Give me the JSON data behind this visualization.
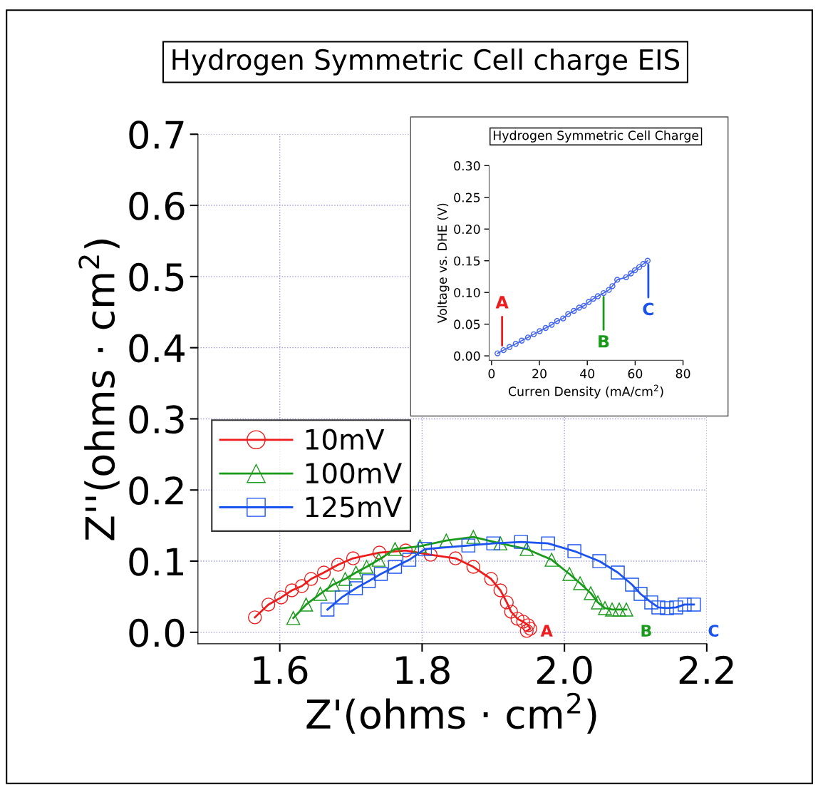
{
  "chart_data": [
    {
      "type": "line",
      "title": "Hydrogen Symmetric Cell charge EIS",
      "xlabel": "Z'(ohms · cm$^{2}$)",
      "ylabel": "Z''(ohms · cm$^{2}$)",
      "xlim": [
        1.485,
        2.2
      ],
      "ylim": [
        -0.016,
        0.7
      ],
      "xticks": [
        1.6,
        1.8,
        {
          "value": 2,
          "label": "2.0"
        },
        2.2
      ],
      "yticks": [
        {
          "value": 0,
          "label": "0.0"
        },
        0.1,
        0.2,
        0.3,
        0.4,
        0.5,
        0.6,
        0.7
      ],
      "grid": true,
      "legend": "left",
      "line_style": "solid",
      "series": [
        {
          "name": "10mV",
          "color": "#ee1c1c",
          "marker": "circle",
          "x": [
            1.565,
            1.584,
            1.602,
            1.617,
            1.631,
            1.644,
            1.662,
            1.682,
            1.703,
            1.74,
            1.777,
            1.812,
            1.847,
            1.872,
            1.897,
            1.91,
            1.919,
            1.925,
            1.934,
            1.942,
            1.949,
            1.952,
            1.947
          ],
          "values": [
            0.021,
            0.039,
            0.049,
            0.059,
            0.065,
            0.075,
            0.084,
            0.095,
            0.104,
            0.112,
            0.115,
            0.109,
            0.104,
            0.092,
            0.075,
            0.059,
            0.042,
            0.029,
            0.019,
            0.015,
            0.01,
            0.005,
            0.002
          ]
        },
        {
          "name": "100mV",
          "color": "#1a9a1a",
          "marker": "triangle",
          "x": [
            1.619,
            1.637,
            1.657,
            1.675,
            1.692,
            1.707,
            1.722,
            1.739,
            1.762,
            1.797,
            1.834,
            1.872,
            1.91,
            1.947,
            1.982,
            2.007,
            2.022,
            2.037,
            2.047,
            2.057,
            2.067,
            2.077,
            2.087
          ],
          "values": [
            0.02,
            0.039,
            0.054,
            0.067,
            0.075,
            0.084,
            0.092,
            0.102,
            0.117,
            0.121,
            0.129,
            0.134,
            0.125,
            0.117,
            0.102,
            0.082,
            0.069,
            0.055,
            0.042,
            0.034,
            0.032,
            0.032,
            0.032
          ]
        },
        {
          "name": "125mV",
          "color": "#1a53f0",
          "marker": "square",
          "x": [
            1.667,
            1.687,
            1.707,
            1.725,
            1.742,
            1.762,
            1.782,
            1.804,
            1.865,
            1.9,
            1.939,
            1.977,
            2.014,
            2.049,
            2.075,
            2.095,
            2.107,
            2.122,
            2.132,
            2.144,
            2.157,
            2.169,
            2.182
          ],
          "values": [
            0.032,
            0.049,
            0.062,
            0.072,
            0.082,
            0.092,
            0.102,
            0.117,
            0.122,
            0.125,
            0.127,
            0.125,
            0.114,
            0.1,
            0.084,
            0.067,
            0.054,
            0.042,
            0.035,
            0.034,
            0.035,
            0.039,
            0.039
          ]
        }
      ],
      "annotations": [
        "A",
        "B",
        "C"
      ]
    },
    {
      "type": "line",
      "title": "Hydrogen Symmetric Cell Charge",
      "xlabel": "Curren Density (mA/cm$^{2}$)",
      "ylabel": "Voltage vs. DHE (V)",
      "xlim": [
        -1,
        80
      ],
      "ylim": [
        -0.007,
        0.3
      ],
      "xticks": [
        0,
        20,
        40,
        60,
        80
      ],
      "yticks": [
        {
          "value": 0,
          "label": "0.00"
        },
        {
          "value": 0.05,
          "label": "0.05"
        },
        {
          "value": 0.1,
          "label": "0.10"
        },
        {
          "value": 0.15,
          "label": "0.15"
        },
        {
          "value": 0.2,
          "label": "0.20"
        },
        {
          "value": 0.25,
          "label": "0.25"
        },
        {
          "value": 0.3,
          "label": "0.30"
        }
      ],
      "marker": "circle",
      "line_style": "solid",
      "series": [
        {
          "color": "#4466ee",
          "x": [
            2.5,
            5.0,
            7.5,
            10.1,
            12.6,
            15.2,
            17.6,
            20.1,
            22.6,
            25.1,
            27.4,
            29.9,
            32.0,
            34.4,
            36.6,
            38.6,
            40.6,
            42.5,
            44.4,
            46.8,
            49.0,
            50.5,
            52.5,
            56.2,
            58.2,
            59.9,
            61.7,
            63.4,
            65.2
          ],
          "values": [
            0.004,
            0.009,
            0.014,
            0.019,
            0.024,
            0.029,
            0.034,
            0.039,
            0.044,
            0.049,
            0.055,
            0.059,
            0.066,
            0.071,
            0.076,
            0.079,
            0.085,
            0.09,
            0.094,
            0.099,
            0.104,
            0.11,
            0.12,
            0.124,
            0.13,
            0.135,
            0.14,
            0.145,
            0.15
          ]
        }
      ],
      "annotations": [
        {
          "text": "A",
          "x": 4.4,
          "y": 0.01
        },
        {
          "text": "B",
          "x": 46.8,
          "y": 0.099
        },
        {
          "text": "C",
          "x": 65.5,
          "y": 0.15
        }
      ]
    }
  ]
}
